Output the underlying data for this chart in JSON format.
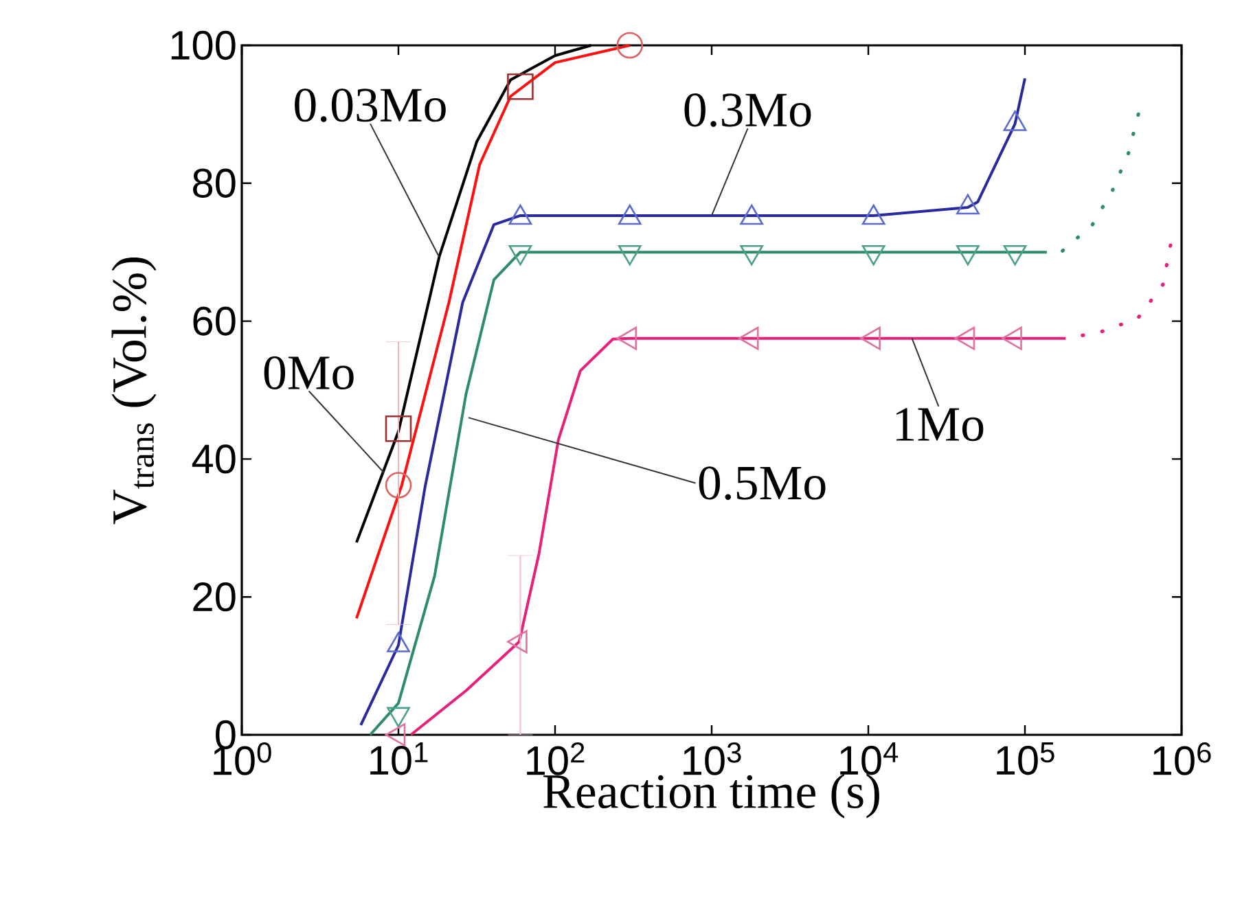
{
  "chart_data": {
    "type": "line",
    "xlabel": "Reaction time (s)",
    "ylabel": "V$_{trans}$ (Vol.%)",
    "log": "x",
    "grid": false,
    "xlim": [
      1,
      1000000
    ],
    "ylim": [
      0,
      100
    ],
    "xticks": [
      {
        "value": 1,
        "label": "10$^{0}$"
      },
      {
        "value": 10,
        "label": "10$^{1}$"
      },
      {
        "value": 100,
        "label": "10$^{2}$"
      },
      {
        "value": 1000,
        "label": "10$^{3}$"
      },
      {
        "value": 10000,
        "label": "10$^{4}$"
      },
      {
        "value": 100000,
        "label": "10$^{5}$"
      },
      {
        "value": 1000000,
        "label": "10$^{6}$"
      }
    ],
    "yticks": [
      0,
      20,
      40,
      60,
      80,
      100
    ],
    "series": [
      {
        "color": "#000000",
        "marker": "none",
        "line_style": "solid",
        "x": [
          5.4,
          10,
          18.2,
          31.6,
          52,
          100,
          170
        ],
        "values": [
          27.9,
          44,
          69.3,
          86,
          95,
          98.5,
          100
        ]
      },
      {
        "color": "#ff1010",
        "marker": "none",
        "line_style": "solid",
        "x": [
          5.4,
          10.5,
          21,
          33,
          52,
          100,
          300
        ],
        "values": [
          16.9,
          36.2,
          62.7,
          82.7,
          92.6,
          97.5,
          100
        ]
      },
      {
        "color": "#2a2aa0",
        "marker": "none",
        "line_style": "solid",
        "x": [
          5.75,
          10,
          14.8,
          25.7,
          40.7,
          60,
          300,
          1800,
          10800,
          43200,
          50000,
          86400,
          100000
        ],
        "values": [
          1.4,
          13,
          36,
          62.7,
          74,
          75.3,
          75.3,
          75.3,
          75.3,
          76.5,
          77.3,
          88.6,
          95.2
        ]
      },
      {
        "color": "#2e8b6e",
        "marker": "none",
        "line_style": "solid",
        "x": [
          6.6,
          10,
          17,
          27,
          40.7,
          60,
          300,
          1800,
          10800,
          43200,
          86400,
          138000
        ],
        "values": [
          0,
          4.6,
          23,
          49.4,
          66,
          70,
          70,
          70,
          70,
          70,
          70,
          70
        ]
      },
      {
        "type": "line",
        "color": "#2e8b6e",
        "marker": "none",
        "line_style": "dotted",
        "x": [
          138000,
          170000,
          270000,
          363000,
          457000,
          530000
        ],
        "values": [
          70,
          70,
          74,
          79,
          84.3,
          90
        ]
      },
      {
        "color": "#e8207a",
        "marker": "none",
        "line_style": "solid",
        "x": [
          12,
          27,
          59,
          79,
          105,
          145,
          234,
          300,
          1800,
          10800,
          43200,
          86400,
          182000
        ],
        "values": [
          0,
          6.4,
          13.5,
          26.3,
          42.8,
          52.8,
          57.4,
          57.5,
          57.5,
          57.5,
          57.5,
          57.5,
          57.5
        ]
      },
      {
        "type": "line",
        "color": "#e8207a",
        "marker": "none",
        "line_style": "dotted",
        "x": [
          182000,
          302000,
          525000,
          760000,
          850000
        ],
        "values": [
          57.5,
          58.4,
          60.4,
          65.3,
          71
        ]
      },
      {
        "type": "scatter",
        "color": "#a03030",
        "marker": "square",
        "x": [
          10,
          60
        ],
        "values": [
          44.4,
          94
        ]
      },
      {
        "type": "scatter",
        "color": "#e06060",
        "marker": "circle",
        "x": [
          10,
          300
        ],
        "values": [
          36.2,
          100
        ],
        "errors": [
          [
            16,
            57
          ],
          null
        ]
      },
      {
        "type": "scatter",
        "color": "#5a6ad0",
        "marker": "triangle",
        "x": [
          10,
          60,
          300,
          1800,
          10800,
          43200,
          86400
        ],
        "values": [
          13,
          75,
          75,
          75,
          75,
          76.5,
          88.6
        ]
      },
      {
        "type": "scatter",
        "color": "#4aa08a",
        "marker": "triangle-down",
        "x": [
          10,
          60,
          300,
          1800,
          10800,
          43200,
          86400
        ],
        "values": [
          3,
          70,
          70,
          70,
          70,
          70,
          70
        ]
      },
      {
        "type": "scatter",
        "color": "#e070a0",
        "marker": "triangle-left",
        "x": [
          10,
          60,
          300,
          1800,
          10800,
          43200,
          86400
        ],
        "values": [
          0,
          13.5,
          57.5,
          57.5,
          57.5,
          57.5,
          57.5
        ],
        "errors": [
          null,
          [
            0,
            26
          ],
          null,
          null,
          null,
          null,
          null
        ]
      }
    ],
    "annotations": [
      {
        "text": "0.03Mo",
        "x": 18.2,
        "y": 69.3
      },
      {
        "text": "0Mo",
        "x": 8.1,
        "y": 38
      },
      {
        "text": "0.3Mo",
        "x": 1000,
        "y": 75.3
      },
      {
        "text": "0.5Mo",
        "x": 28,
        "y": 46
      },
      {
        "text": "1Mo",
        "x": 19000,
        "y": 57.5
      }
    ]
  }
}
